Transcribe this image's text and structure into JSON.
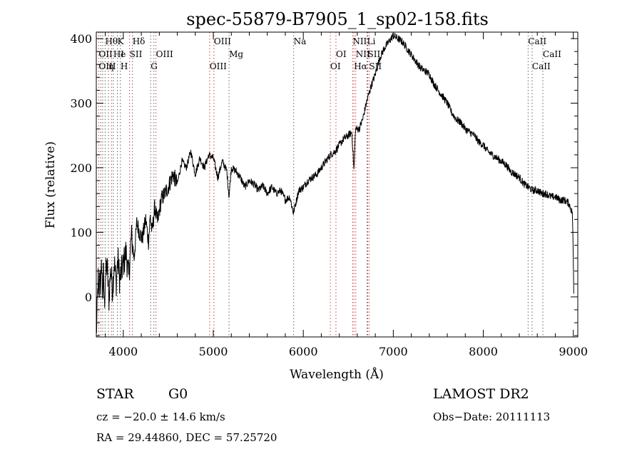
{
  "chart_data": {
    "type": "line",
    "title": "spec-55879-B7905_1_sp02-158.fits",
    "xlabel": "Wavelength (Å)",
    "ylabel": "Flux (relative)",
    "xlim": [
      3700,
      9050
    ],
    "ylim": [
      -62,
      410
    ],
    "x_ticks": [
      4000,
      5000,
      6000,
      7000,
      8000,
      9000
    ],
    "y_ticks": [
      0,
      100,
      200,
      300,
      400
    ],
    "grid": false,
    "series": [
      {
        "x": [
          3700,
          3710,
          3720,
          3730,
          3740,
          3750,
          3760,
          3770,
          3780,
          3790,
          3800,
          3820,
          3840,
          3860,
          3880,
          3900,
          3920,
          3940,
          3960,
          3980,
          4000,
          4030,
          4060,
          4090,
          4120,
          4150,
          4180,
          4210,
          4250,
          4280,
          4300,
          4320,
          4350,
          4380,
          4420,
          4460,
          4500,
          4550,
          4600,
          4650,
          4700,
          4750,
          4800,
          4850,
          4900,
          4950,
          5000,
          5050,
          5100,
          5150,
          5175,
          5200,
          5250,
          5300,
          5350,
          5400,
          5450,
          5500,
          5550,
          5600,
          5650,
          5700,
          5750,
          5800,
          5850,
          5890,
          5950,
          6000,
          6050,
          6100,
          6150,
          6200,
          6250,
          6300,
          6350,
          6400,
          6450,
          6500,
          6540,
          6563,
          6580,
          6620,
          6660,
          6700,
          6750,
          6800,
          6850,
          6900,
          6950,
          7000,
          7050,
          7100,
          7150,
          7200,
          7250,
          7300,
          7350,
          7400,
          7450,
          7500,
          7550,
          7600,
          7650,
          7700,
          7750,
          7800,
          7850,
          7900,
          7950,
          8000,
          8050,
          8100,
          8150,
          8200,
          8250,
          8300,
          8350,
          8400,
          8450,
          8500,
          8550,
          8600,
          8650,
          8700,
          8750,
          8800,
          8850,
          8900,
          8950,
          8990,
          9000,
          9005
        ],
        "y": [
          -58,
          -20,
          30,
          -10,
          45,
          10,
          55,
          0,
          40,
          -15,
          30,
          50,
          -5,
          45,
          10,
          55,
          20,
          60,
          25,
          40,
          50,
          70,
          30,
          95,
          60,
          115,
          100,
          90,
          120,
          85,
          125,
          100,
          140,
          115,
          150,
          160,
          170,
          190,
          175,
          210,
          200,
          225,
          190,
          215,
          200,
          220,
          215,
          185,
          210,
          195,
          155,
          200,
          195,
          185,
          170,
          180,
          175,
          165,
          172,
          160,
          170,
          160,
          165,
          150,
          155,
          130,
          165,
          170,
          180,
          185,
          190,
          200,
          210,
          220,
          225,
          235,
          245,
          250,
          255,
          195,
          260,
          260,
          275,
          300,
          325,
          345,
          370,
          385,
          395,
          405,
          400,
          395,
          385,
          375,
          365,
          355,
          350,
          345,
          330,
          320,
          310,
          300,
          285,
          275,
          270,
          260,
          255,
          250,
          240,
          235,
          225,
          220,
          215,
          210,
          205,
          195,
          190,
          185,
          175,
          170,
          165,
          165,
          160,
          160,
          155,
          155,
          150,
          150,
          145,
          130,
          60,
          5
        ]
      }
    ],
    "line_markers": [
      {
        "name": "Hθ",
        "x": 3798,
        "row": 0,
        "color": "#000000"
      },
      {
        "name": "K",
        "x": 3934,
        "row": 0,
        "color": "#000000"
      },
      {
        "name": "Hδ",
        "x": 4102,
        "row": 0,
        "color": "#000000"
      },
      {
        "name": "OIII",
        "x": 5007,
        "row": 0,
        "color": "#000000"
      },
      {
        "name": "Na",
        "x": 5893,
        "row": 0,
        "color": "#000000"
      },
      {
        "name": "NII",
        "x": 6548,
        "row": 0,
        "color": "#000000"
      },
      {
        "name": "Li",
        "x": 6708,
        "row": 0,
        "color": "#000000"
      },
      {
        "name": "CaII",
        "x": 8498,
        "row": 0,
        "color": "#000000"
      },
      {
        "name": "OII",
        "x": 3727,
        "row": 1,
        "color": "#000000"
      },
      {
        "name": "He",
        "x": 3889,
        "row": 1,
        "color": "#000000"
      },
      {
        "name": "I",
        "x": 3970,
        "row": 1,
        "color": "#000000"
      },
      {
        "name": "SII",
        "x": 4070,
        "row": 1,
        "color": "#000000"
      },
      {
        "name": "OIII",
        "x": 4363,
        "row": 1,
        "color": "#000000"
      },
      {
        "name": "Mg",
        "x": 5175,
        "row": 1,
        "color": "#000000"
      },
      {
        "name": "OI",
        "x": 6363,
        "row": 1,
        "color": "#000000"
      },
      {
        "name": "NII",
        "x": 6583,
        "row": 1,
        "color": "#000000"
      },
      {
        "name": "SII",
        "x": 6716,
        "row": 1,
        "color": "#000000"
      },
      {
        "name": "CaII",
        "x": 8662,
        "row": 1,
        "color": "#000000"
      },
      {
        "name": "OIII",
        "x": 3727,
        "row": 2,
        "color": "#000000"
      },
      {
        "name": "η",
        "x": 3835,
        "row": 2,
        "color": "#000000"
      },
      {
        "name": "H",
        "x": 3968,
        "row": 2,
        "color": "#000000"
      },
      {
        "name": "G",
        "x": 4304,
        "row": 2,
        "color": "#000000"
      },
      {
        "name": "OIII",
        "x": 4959,
        "row": 2,
        "color": "#000000"
      },
      {
        "name": "OI",
        "x": 6300,
        "row": 2,
        "color": "#000000"
      },
      {
        "name": "Hα",
        "x": 6563,
        "row": 2,
        "color": "#000000"
      },
      {
        "name": "SII",
        "x": 6731,
        "row": 2,
        "color": "#000000"
      },
      {
        "name": "CaII",
        "x": 8542,
        "row": 2,
        "color": "#000000"
      }
    ],
    "vline_colors": {
      "emission": "#d04040",
      "absorption": "#606060"
    },
    "vlines": [
      {
        "x": 3727,
        "kind": "emission"
      },
      {
        "x": 3750,
        "kind": "absorption"
      },
      {
        "x": 3771,
        "kind": "absorption"
      },
      {
        "x": 3798,
        "kind": "absorption"
      },
      {
        "x": 3835,
        "kind": "absorption"
      },
      {
        "x": 3869,
        "kind": "emission"
      },
      {
        "x": 3889,
        "kind": "absorption"
      },
      {
        "x": 3934,
        "kind": "absorption"
      },
      {
        "x": 3968,
        "kind": "absorption"
      },
      {
        "x": 4070,
        "kind": "emission"
      },
      {
        "x": 4102,
        "kind": "absorption"
      },
      {
        "x": 4304,
        "kind": "absorption"
      },
      {
        "x": 4340,
        "kind": "absorption"
      },
      {
        "x": 4363,
        "kind": "emission"
      },
      {
        "x": 4959,
        "kind": "emission"
      },
      {
        "x": 5007,
        "kind": "emission"
      },
      {
        "x": 5175,
        "kind": "absorption"
      },
      {
        "x": 5893,
        "kind": "absorption"
      },
      {
        "x": 6300,
        "kind": "emission"
      },
      {
        "x": 6363,
        "kind": "emission"
      },
      {
        "x": 6548,
        "kind": "emission"
      },
      {
        "x": 6563,
        "kind": "emission"
      },
      {
        "x": 6583,
        "kind": "emission"
      },
      {
        "x": 6708,
        "kind": "absorption"
      },
      {
        "x": 6716,
        "kind": "emission"
      },
      {
        "x": 6731,
        "kind": "emission"
      },
      {
        "x": 8498,
        "kind": "absorption"
      },
      {
        "x": 8542,
        "kind": "absorption"
      },
      {
        "x": 8662,
        "kind": "absorption"
      }
    ]
  },
  "info": {
    "class_label": "STAR",
    "subclass_label": "G0",
    "survey": "LAMOST DR2",
    "redshift": "cz = −20.0 ± 14.6 km/s",
    "obs_date": "Obs−Date: 20111113",
    "coords": "RA =  29.44860, DEC =  57.25720"
  }
}
